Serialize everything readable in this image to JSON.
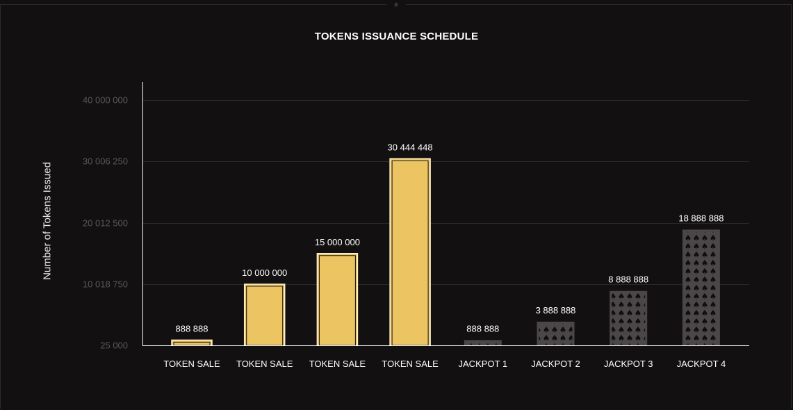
{
  "chart_data": {
    "type": "bar",
    "title": "TOKENS ISSUANCE SCHEDULE",
    "xlabel": "",
    "ylabel": "Number of Tokens Issued",
    "ylim": [
      25000,
      40000000
    ],
    "yticks": [
      25000,
      10018750,
      20012500,
      30006250,
      40000000
    ],
    "ytick_labels": [
      "25 000",
      "10 018 750",
      "20 012 500",
      "30 006 250",
      "40 000 000"
    ],
    "categories": [
      "TOKEN SALE",
      "TOKEN SALE",
      "TOKEN SALE",
      "TOKEN SALE",
      "JACKPOT 1",
      "JACKPOT 2",
      "JACKPOT 3",
      "JACKPOT 4"
    ],
    "values": [
      888888,
      10000000,
      15000000,
      30444448,
      888888,
      3888888,
      8888888,
      18888888
    ],
    "value_labels": [
      "888 888",
      "10 000 000",
      "15 000 000",
      "30 444 448",
      "888 888",
      "3 888 888",
      "8 888 888",
      "18 888 888"
    ],
    "bar_styles": [
      "gold",
      "gold",
      "gold",
      "gold",
      "spades",
      "spades",
      "spades",
      "spades"
    ],
    "grid": true,
    "colors": {
      "background": "#121011",
      "gold_bar": "#ecc462",
      "gold_outline": "#fff4cf",
      "spade_bar": "#4b4748",
      "spade_glyph": "#0f0d0e",
      "text": "#ffffff",
      "tick_text": "#5a5758",
      "grid": "#2b292a",
      "axis": "#ffffff"
    },
    "icons": [
      "spade-icon"
    ]
  }
}
